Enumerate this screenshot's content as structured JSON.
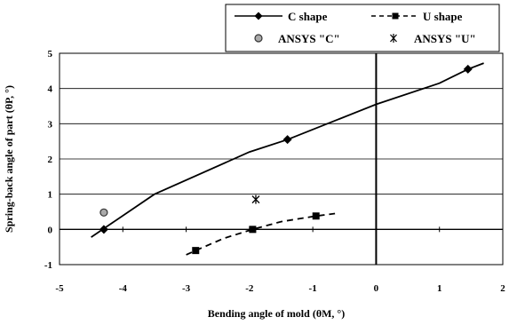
{
  "chart_data": {
    "type": "line",
    "xlabel": "Bending angle of mold (θM, °)",
    "ylabel": "Spring-back angle of part (θP, °)",
    "xlim": [
      -5,
      2
    ],
    "ylim": [
      -1,
      5
    ],
    "x_ticks": [
      "-5",
      "-4",
      "-3",
      "-2",
      "-1",
      "0",
      "1",
      "2"
    ],
    "y_ticks": [
      "-1",
      "0",
      "1",
      "2",
      "3",
      "4",
      "5"
    ],
    "grid": "horizontal",
    "legend_position": "top",
    "series": [
      {
        "name": "C shape",
        "style": "solid",
        "marker": "diamond",
        "color": "#000000",
        "points": [
          [
            -4.3,
            0.0
          ],
          [
            -1.4,
            2.55
          ],
          [
            1.45,
            4.55
          ]
        ],
        "curve": [
          [
            -4.5,
            -0.22
          ],
          [
            -3.5,
            1.0
          ],
          [
            -2.0,
            2.2
          ],
          [
            -1.4,
            2.55
          ],
          [
            0.0,
            3.55
          ],
          [
            1.0,
            4.15
          ],
          [
            1.45,
            4.55
          ],
          [
            1.7,
            4.72
          ]
        ]
      },
      {
        "name": "U shape",
        "style": "dashed",
        "marker": "square",
        "color": "#000000",
        "points": [
          [
            -2.85,
            -0.6
          ],
          [
            -1.95,
            0.0
          ],
          [
            -0.95,
            0.38
          ]
        ],
        "curve": [
          [
            -3.0,
            -0.72
          ],
          [
            -2.85,
            -0.6
          ],
          [
            -2.4,
            -0.25
          ],
          [
            -1.95,
            0.0
          ],
          [
            -1.5,
            0.22
          ],
          [
            -0.95,
            0.38
          ],
          [
            -0.65,
            0.45
          ]
        ]
      },
      {
        "name": "ANSYS \"C\"",
        "style": "none",
        "marker": "dotted-circle",
        "color": "#555555",
        "points": [
          [
            -4.3,
            0.48
          ]
        ]
      },
      {
        "name": "ANSYS \"U\"",
        "style": "none",
        "marker": "star",
        "color": "#000000",
        "points": [
          [
            -1.9,
            0.85
          ]
        ]
      }
    ]
  }
}
